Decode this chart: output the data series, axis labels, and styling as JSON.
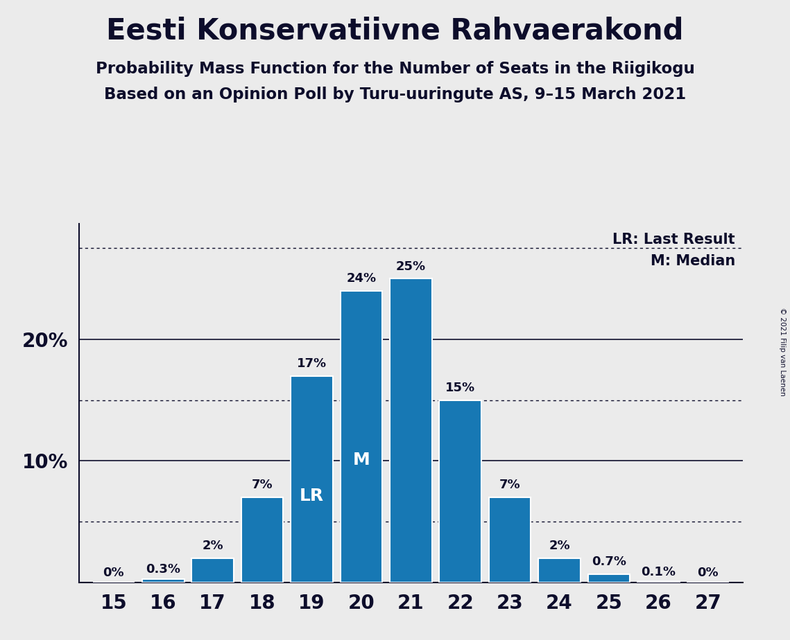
{
  "title": "Eesti Konservatiivne Rahvaerakond",
  "subtitle1": "Probability Mass Function for the Number of Seats in the Riigikogu",
  "subtitle2": "Based on an Opinion Poll by Turu-uuringute AS, 9–15 March 2021",
  "copyright": "© 2021 Filip van Laenen",
  "seats": [
    15,
    16,
    17,
    18,
    19,
    20,
    21,
    22,
    23,
    24,
    25,
    26,
    27
  ],
  "probabilities": [
    0.0,
    0.3,
    2.0,
    7.0,
    17.0,
    24.0,
    25.0,
    15.0,
    7.0,
    2.0,
    0.7,
    0.1,
    0.0
  ],
  "bar_color": "#1778b4",
  "bar_edge_color": "white",
  "background_color": "#ebebeb",
  "lr_seat": 19,
  "median_seat": 20,
  "lr_label": "LR",
  "median_label": "M",
  "dotted_lines": [
    5.0,
    15.0,
    27.5
  ],
  "solid_lines": [
    10.0,
    20.0
  ],
  "yticks": [
    10,
    20
  ],
  "legend_lr": "LR: Last Result",
  "legend_m": "M: Median",
  "ylim_max": 29.5,
  "text_color": "#0d0d2b"
}
